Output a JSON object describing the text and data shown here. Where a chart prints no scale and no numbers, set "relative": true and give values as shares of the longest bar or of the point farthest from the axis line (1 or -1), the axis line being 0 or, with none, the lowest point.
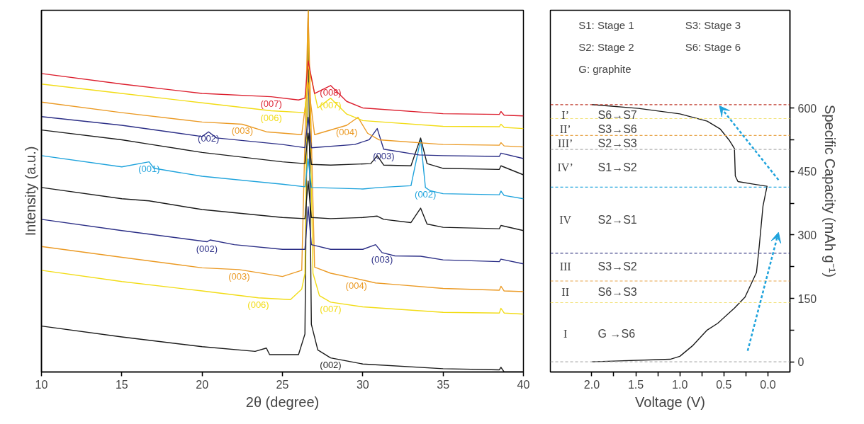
{
  "chart_data": [
    {
      "type": "line",
      "relative": true,
      "xlabel": "2θ (degree)",
      "ylabel": "Intensity (a.u.)",
      "xlim": [
        10,
        40
      ],
      "xticks": [
        10,
        15,
        20,
        25,
        30,
        35,
        40
      ],
      "grid": false,
      "tick_labels": "x",
      "series": [
        {
          "color": "#1a1a1a",
          "x": [
            10,
            15,
            20,
            23.3,
            24.0,
            24.2,
            26.0,
            26.4,
            26.6,
            26.8,
            27.2,
            28,
            30,
            35,
            38.5,
            38.6,
            38.8,
            40
          ],
          "values": [
            0.127,
            0.097,
            0.07,
            0.057,
            0.066,
            0.048,
            0.048,
            0.105,
            1.0,
            0.132,
            0.061,
            0.039,
            0.022,
            0.009,
            0.006,
            0.013,
            0.0,
            0.0
          ]
        },
        {
          "color": "#f2dc16",
          "x": [
            10,
            15,
            20,
            23.5,
            25.5,
            26.2,
            26.4,
            26.6,
            26.9,
            27.3,
            28,
            30,
            35,
            38.5,
            38.6,
            38.8,
            40
          ],
          "values": [
            0.281,
            0.25,
            0.224,
            0.205,
            0.2,
            0.229,
            0.272,
            1.0,
            0.273,
            0.211,
            0.193,
            0.18,
            0.165,
            0.163,
            0.176,
            0.163,
            0.16
          ]
        },
        {
          "color": "#eb9a24",
          "x": [
            10,
            15,
            20,
            22.3,
            25,
            26.2,
            26.6,
            27,
            28,
            29.6,
            30.8,
            32,
            35,
            38.5,
            38.6,
            38.8,
            40
          ],
          "values": [
            0.347,
            0.317,
            0.288,
            0.283,
            0.264,
            0.281,
            1.0,
            0.29,
            0.273,
            0.258,
            0.246,
            0.242,
            0.231,
            0.226,
            0.237,
            0.224,
            0.222
          ]
        },
        {
          "color": "#2b2e86",
          "x": [
            10,
            15,
            20.3,
            20.5,
            22,
            25,
            26.4,
            26.6,
            26.8,
            28,
            30,
            30.8,
            31.2,
            32,
            33.6,
            35,
            38.5,
            38.6,
            40
          ],
          "values": [
            0.422,
            0.391,
            0.36,
            0.365,
            0.352,
            0.339,
            0.339,
            0.457,
            0.352,
            0.339,
            0.339,
            0.352,
            0.33,
            0.321,
            0.32,
            0.31,
            0.305,
            0.312,
            0.299
          ]
        },
        {
          "color": "#1a1a1a",
          "x": [
            10,
            15,
            16.7,
            20,
            25,
            26.4,
            26.6,
            26.8,
            28,
            30,
            30.9,
            31.3,
            33,
            33.6,
            34,
            35,
            38.5,
            38.6,
            40
          ],
          "values": [
            0.51,
            0.479,
            0.473,
            0.449,
            0.427,
            0.424,
            0.528,
            0.427,
            0.424,
            0.427,
            0.431,
            0.422,
            0.413,
            0.453,
            0.409,
            0.4,
            0.396,
            0.405,
            0.391
          ]
        },
        {
          "color": "#1fa3dc",
          "x": [
            10,
            15,
            16.7,
            17,
            20,
            25,
            26.4,
            26.6,
            26.8,
            30,
            31,
            33,
            33.6,
            33.9,
            34.2,
            35,
            38.5,
            38.6,
            38.8,
            40
          ],
          "values": [
            0.598,
            0.567,
            0.581,
            0.563,
            0.541,
            0.519,
            0.512,
            0.589,
            0.51,
            0.506,
            0.51,
            0.515,
            0.642,
            0.51,
            0.501,
            0.493,
            0.49,
            0.5,
            0.488,
            0.479
          ]
        },
        {
          "color": "#1a1a1a",
          "x": [
            10,
            15,
            16.7,
            20,
            25,
            26.4,
            26.6,
            26.8,
            28,
            30.5,
            30.9,
            31.3,
            33,
            33.6,
            34,
            35,
            38.5,
            38.6,
            40
          ],
          "values": [
            0.669,
            0.642,
            0.63,
            0.607,
            0.581,
            0.576,
            0.66,
            0.574,
            0.572,
            0.576,
            0.598,
            0.572,
            0.57,
            0.647,
            0.576,
            0.563,
            0.56,
            0.57,
            0.545
          ]
        },
        {
          "color": "#2b2e86",
          "x": [
            10,
            15,
            20,
            20.4,
            20.9,
            25,
            26.4,
            26.6,
            26.8,
            29.5,
            30.4,
            30.9,
            31.3,
            33.5,
            35,
            38.5,
            38.6,
            40
          ],
          "values": [
            0.706,
            0.682,
            0.651,
            0.664,
            0.647,
            0.629,
            0.62,
            0.704,
            0.62,
            0.629,
            0.642,
            0.673,
            0.616,
            0.6,
            0.598,
            0.596,
            0.605,
            0.59
          ]
        },
        {
          "color": "#eb9a24",
          "x": [
            10,
            15,
            20,
            22.5,
            24,
            26.2,
            26.6,
            27,
            29,
            29.7,
            30.3,
            31,
            35,
            38.5,
            38.6,
            38.8,
            40
          ],
          "values": [
            0.746,
            0.717,
            0.691,
            0.685,
            0.664,
            0.656,
            0.8,
            0.656,
            0.682,
            0.704,
            0.66,
            0.642,
            0.629,
            0.627,
            0.634,
            0.625,
            0.622
          ]
        },
        {
          "color": "#f2dc16",
          "x": [
            10,
            15,
            20,
            24.3,
            26.4,
            26.6,
            27.2,
            28,
            29,
            30,
            35,
            38.5,
            38.6,
            38.8,
            40
          ],
          "values": [
            0.796,
            0.77,
            0.744,
            0.722,
            0.717,
            0.85,
            0.73,
            0.757,
            0.713,
            0.695,
            0.679,
            0.678,
            0.685,
            0.676,
            0.673
          ]
        },
        {
          "color": "#dc1f2e",
          "x": [
            10,
            15,
            20,
            24.3,
            26,
            26.4,
            26.6,
            27,
            28,
            29,
            30,
            35,
            38.5,
            38.6,
            38.8,
            40
          ],
          "values": [
            0.825,
            0.796,
            0.77,
            0.761,
            0.752,
            0.757,
            0.86,
            0.77,
            0.792,
            0.748,
            0.73,
            0.714,
            0.712,
            0.72,
            0.71,
            0.708
          ]
        }
      ],
      "annotations": [
        {
          "text": "(002)",
          "x": 28,
          "y": 0.039
        },
        {
          "text": "(006)",
          "x": 23.5,
          "y": 0.205
        },
        {
          "text": "(007)",
          "x": 28,
          "y": 0.193
        },
        {
          "text": "(003)",
          "x": 22.3,
          "y": 0.283
        },
        {
          "text": "(004)",
          "x": 29.6,
          "y": 0.258
        },
        {
          "text": "(002)",
          "x": 20.3,
          "y": 0.36
        },
        {
          "text": "(003)",
          "x": 31.2,
          "y": 0.33
        },
        {
          "text": "(001)",
          "x": 16.7,
          "y": 0.581
        },
        {
          "text": "(002)",
          "x": 33.9,
          "y": 0.51
        },
        {
          "text": "(002)",
          "x": 20.4,
          "y": 0.664
        },
        {
          "text": "(003)",
          "x": 31.3,
          "y": 0.616
        },
        {
          "text": "(003)",
          "x": 22.5,
          "y": 0.685
        },
        {
          "text": "(004)",
          "x": 29,
          "y": 0.682
        },
        {
          "text": "(006)",
          "x": 24.3,
          "y": 0.722
        },
        {
          "text": "(007)",
          "x": 28,
          "y": 0.757
        },
        {
          "text": "(007)",
          "x": 24.3,
          "y": 0.761
        },
        {
          "text": "(008)",
          "x": 28,
          "y": 0.792
        }
      ]
    },
    {
      "type": "line",
      "xlabel": "Voltage (V)",
      "ylabel": "Specific Capacity (mAh g⁻¹)",
      "xlim": [
        2.47,
        -0.25
      ],
      "ylim": [
        -24,
        831
      ],
      "xticks": [
        {
          "value": 2,
          "label": "2.0"
        },
        {
          "value": 1.75,
          "label": null
        },
        1.5,
        {
          "value": 1.25,
          "label": null
        },
        {
          "value": 1,
          "label": "1.0"
        },
        {
          "value": 0.75,
          "label": null
        },
        0.5,
        {
          "value": 0.25,
          "label": null
        },
        {
          "value": 0,
          "label": "0.0"
        }
      ],
      "yticks": [
        0,
        {
          "value": 75,
          "label": null
        },
        150,
        {
          "value": 225,
          "label": null
        },
        300,
        {
          "value": 375,
          "label": null
        },
        450,
        {
          "value": 525,
          "label": null
        },
        600
      ],
      "grid": false,
      "series": [
        {
          "color": "#1a1a1a",
          "x": [
            2.0,
            1.11,
            1.0,
            0.85,
            0.69,
            0.57,
            0.38,
            0.26,
            0.13,
            0.1,
            0.056,
            0.01,
            0.165,
            0.34,
            0.37,
            0.38,
            0.44,
            0.54,
            0.69,
            1.0,
            1.47,
            2.0
          ],
          "values": [
            0,
            6,
            13,
            39,
            75,
            91,
            127,
            153,
            211,
            270,
            368,
            415,
            420,
            426,
            439,
            504,
            524,
            550,
            569,
            586,
            599,
            608
          ]
        }
      ],
      "ref_lines": [
        {
          "axis": "y",
          "value": 608,
          "color": "#c0392b",
          "line_style": "dashed"
        },
        {
          "axis": "y",
          "value": 575,
          "color": "#f2e27a",
          "line_style": "dashed"
        },
        {
          "axis": "y",
          "value": 535,
          "color": "#e8a54a",
          "line_style": "dashed"
        },
        {
          "axis": "y",
          "value": 502,
          "color": "#b0b0b0",
          "line_style": "dashed"
        },
        {
          "axis": "y",
          "value": 413,
          "color": "#1fa3dc",
          "line_style": "dashed"
        },
        {
          "axis": "y",
          "value": 257,
          "color": "#3b3e86",
          "line_style": "dashed"
        },
        {
          "axis": "y",
          "value": 191,
          "color": "#e8a54a",
          "line_style": "dashed"
        },
        {
          "axis": "y",
          "value": 140,
          "color": "#f2e27a",
          "line_style": "dashed"
        },
        {
          "axis": "y",
          "value": 0,
          "color": "#b0b0b0",
          "line_style": "dashed"
        }
      ],
      "annotations": [
        "S1: Stage 1",
        "S3: Stage 3",
        "S2: Stage 2",
        "S6: Stage 6",
        "G: graphite",
        "I’",
        "S6→S7",
        "II’",
        "S3→S6",
        "III’",
        "S2→S3",
        "IV’",
        "S1→S2",
        "IV",
        "S2→S1",
        "III",
        "S3→S2",
        "II",
        "S6→S3",
        "I",
        "G →S6"
      ]
    }
  ]
}
